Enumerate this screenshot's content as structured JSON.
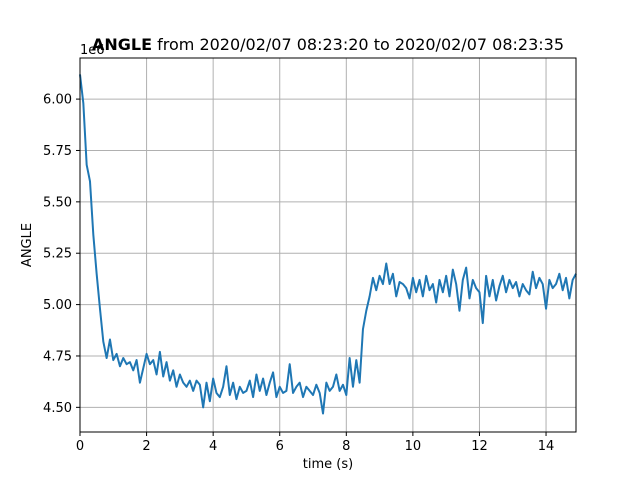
{
  "chart_data": {
    "type": "line",
    "title_bold": "ANGLE",
    "title_rest": " from 2020/02/07 08:23:20 to 2020/02/07 08:23:35",
    "xlabel": "time (s)",
    "ylabel": "ANGLE",
    "y_offset_label": "1e6",
    "xlim": [
      0,
      14.9
    ],
    "ylim": [
      4.38,
      6.2
    ],
    "x_ticks": [
      0,
      2,
      4,
      6,
      8,
      10,
      12,
      14
    ],
    "y_ticks": [
      4.5,
      4.75,
      5.0,
      5.25,
      5.5,
      5.75,
      6.0
    ],
    "x_tick_labels": [
      "0",
      "2",
      "4",
      "6",
      "8",
      "10",
      "12",
      "14"
    ],
    "y_tick_labels": [
      "4.50",
      "4.75",
      "5.00",
      "5.25",
      "5.50",
      "5.75",
      "6.00"
    ],
    "grid": true,
    "series": [
      {
        "color": "#1f77b4",
        "x": [
          0,
          0.1,
          0.2,
          0.3,
          0.4,
          0.5,
          0.6,
          0.7,
          0.8,
          0.9,
          1.0,
          1.1,
          1.2,
          1.3,
          1.4,
          1.5,
          1.6,
          1.7,
          1.8,
          1.9,
          2.0,
          2.1,
          2.2,
          2.3,
          2.4,
          2.5,
          2.6,
          2.7,
          2.8,
          2.9,
          3.0,
          3.1,
          3.2,
          3.3,
          3.4,
          3.5,
          3.6,
          3.7,
          3.8,
          3.9,
          4.0,
          4.1,
          4.2,
          4.3,
          4.4,
          4.5,
          4.6,
          4.7,
          4.8,
          4.9,
          5.0,
          5.1,
          5.2,
          5.3,
          5.4,
          5.5,
          5.6,
          5.7,
          5.8,
          5.9,
          6.0,
          6.1,
          6.2,
          6.3,
          6.4,
          6.5,
          6.6,
          6.7,
          6.8,
          6.9,
          7.0,
          7.1,
          7.2,
          7.3,
          7.4,
          7.5,
          7.6,
          7.7,
          7.8,
          7.9,
          8.0,
          8.1,
          8.2,
          8.3,
          8.4,
          8.5,
          8.6,
          8.7,
          8.8,
          8.9,
          9.0,
          9.1,
          9.2,
          9.3,
          9.4,
          9.5,
          9.6,
          9.7,
          9.8,
          9.9,
          10.0,
          10.1,
          10.2,
          10.3,
          10.4,
          10.5,
          10.6,
          10.7,
          10.8,
          10.9,
          11.0,
          11.1,
          11.2,
          11.3,
          11.4,
          11.5,
          11.6,
          11.7,
          11.8,
          11.9,
          12.0,
          12.1,
          12.2,
          12.3,
          12.4,
          12.5,
          12.6,
          12.7,
          12.8,
          12.9,
          13.0,
          13.1,
          13.2,
          13.3,
          13.4,
          13.5,
          13.6,
          13.7,
          13.8,
          13.9,
          14.0,
          14.1,
          14.2,
          14.3,
          14.4,
          14.5,
          14.6,
          14.7,
          14.8,
          14.9
        ],
        "y": [
          6.12,
          5.98,
          5.68,
          5.6,
          5.34,
          5.15,
          4.98,
          4.82,
          4.74,
          4.83,
          4.73,
          4.76,
          4.7,
          4.74,
          4.71,
          4.72,
          4.68,
          4.73,
          4.62,
          4.69,
          4.76,
          4.71,
          4.73,
          4.66,
          4.77,
          4.65,
          4.72,
          4.63,
          4.68,
          4.6,
          4.66,
          4.62,
          4.6,
          4.63,
          4.58,
          4.63,
          4.61,
          4.5,
          4.62,
          4.53,
          4.64,
          4.57,
          4.55,
          4.6,
          4.7,
          4.56,
          4.62,
          4.54,
          4.6,
          4.57,
          4.58,
          4.63,
          4.55,
          4.66,
          4.58,
          4.64,
          4.56,
          4.62,
          4.67,
          4.55,
          4.6,
          4.57,
          4.58,
          4.71,
          4.57,
          4.6,
          4.62,
          4.55,
          4.6,
          4.58,
          4.56,
          4.61,
          4.57,
          4.47,
          4.62,
          4.58,
          4.6,
          4.66,
          4.58,
          4.61,
          4.56,
          4.74,
          4.6,
          4.73,
          4.62,
          4.88,
          4.97,
          5.04,
          5.13,
          5.07,
          5.14,
          5.1,
          5.2,
          5.1,
          5.15,
          5.04,
          5.11,
          5.1,
          5.08,
          5.03,
          5.13,
          5.06,
          5.12,
          5.04,
          5.14,
          5.07,
          5.1,
          5.01,
          5.12,
          5.06,
          5.14,
          5.04,
          5.17,
          5.1,
          4.97,
          5.12,
          5.18,
          5.03,
          5.12,
          5.08,
          5.06,
          4.91,
          5.14,
          5.04,
          5.12,
          5.02,
          5.09,
          5.14,
          5.06,
          5.12,
          5.08,
          5.11,
          5.04,
          5.1,
          5.07,
          5.05,
          5.16,
          5.08,
          5.13,
          5.1,
          4.98,
          5.12,
          5.08,
          5.1,
          5.15,
          5.07,
          5.13,
          5.03,
          5.12,
          5.15
        ]
      }
    ]
  }
}
